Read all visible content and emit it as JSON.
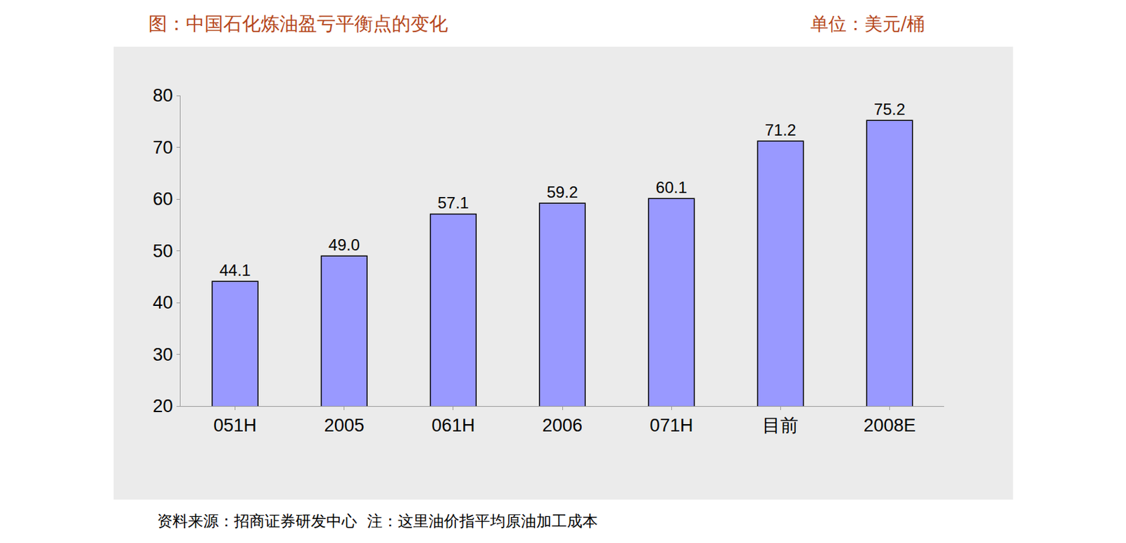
{
  "chart_data": {
    "type": "bar",
    "title": "图：中国石化炼油盈亏平衡点的变化",
    "subtitle": "单位：美元/桶",
    "annotations": [
      "资料来源：招商证券研发中心  注：这里油价指平均原油加工成本"
    ],
    "categories": [
      "051H",
      "2005",
      "061H",
      "2006",
      "071H",
      "目前",
      "2008E"
    ],
    "values": [
      44.1,
      49.0,
      57.1,
      59.2,
      60.1,
      71.2,
      75.2
    ],
    "value_labels": [
      "44.1",
      "49.0",
      "57.1",
      "59.2",
      "60.1",
      "71.2",
      "75.2"
    ],
    "color": "#9999ff",
    "ylim": [
      20,
      80
    ],
    "yticks": [
      20,
      30,
      40,
      50,
      60,
      70,
      80
    ],
    "grid": false,
    "data_labels": true
  }
}
